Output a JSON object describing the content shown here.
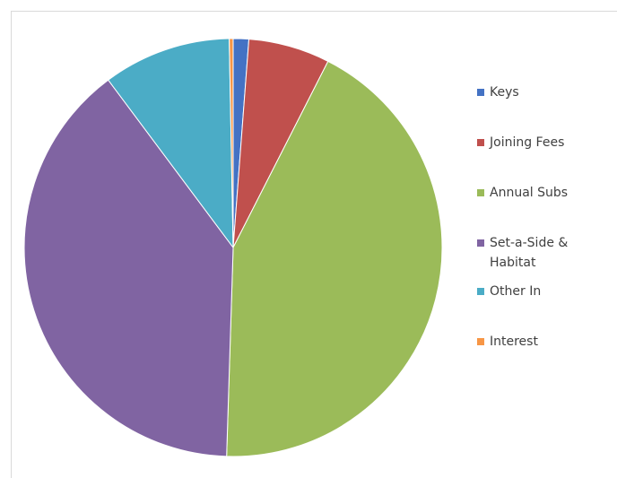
{
  "chart_data": {
    "type": "pie",
    "categories": [
      "Keys",
      "Joining Fees",
      "Annual Subs",
      "Set-a-Side & Habitat",
      "Other In",
      "Interest"
    ],
    "values": [
      1.2,
      6.3,
      43.0,
      39.3,
      9.9,
      0.3
    ],
    "colors": [
      "#4472C4",
      "#C0504D",
      "#9BBB59",
      "#8064A2",
      "#4BACC6",
      "#F79646"
    ],
    "legend_position": "right",
    "title": ""
  }
}
